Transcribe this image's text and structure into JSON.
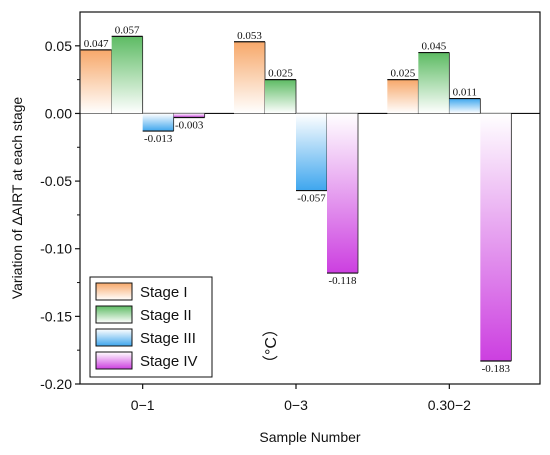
{
  "chart_data": {
    "type": "bar",
    "categories": [
      "0−1",
      "0−3",
      "0.30−2"
    ],
    "series": [
      {
        "name": "Stage I",
        "values": [
          0.047,
          0.053,
          0.025
        ],
        "labels": [
          "0.047",
          "0.053",
          "0.025"
        ],
        "color": "#f7a86a"
      },
      {
        "name": "Stage II",
        "values": [
          0.057,
          0.025,
          0.045
        ],
        "labels": [
          "0.057",
          "0.025",
          "0.045"
        ],
        "color": "#5dbb63"
      },
      {
        "name": "Stage III",
        "values": [
          -0.013,
          -0.057,
          0.011
        ],
        "labels": [
          "-0.013",
          "-0.057",
          "0.011"
        ],
        "color": "#3ea6ee"
      },
      {
        "name": "Stage IV",
        "values": [
          -0.003,
          -0.118,
          -0.183
        ],
        "labels": [
          "-0.003",
          "-0.118",
          "-0.183"
        ],
        "color": "#cc3fe0"
      }
    ],
    "xlabel": "Sample Number",
    "ylabel": "Variation of ΔAIRT at each stage",
    "ylim": [
      -0.2,
      0.075
    ],
    "yticks": [
      0.05,
      0.0,
      -0.05,
      -0.1,
      -0.15,
      -0.2
    ],
    "ytick_labels": [
      "0.05",
      "0.00",
      "-0.05",
      "-0.10",
      "-0.15",
      "-0.20"
    ],
    "unit_annotation": "（°C）",
    "legend_position": "bottom-left",
    "grid": false
  }
}
